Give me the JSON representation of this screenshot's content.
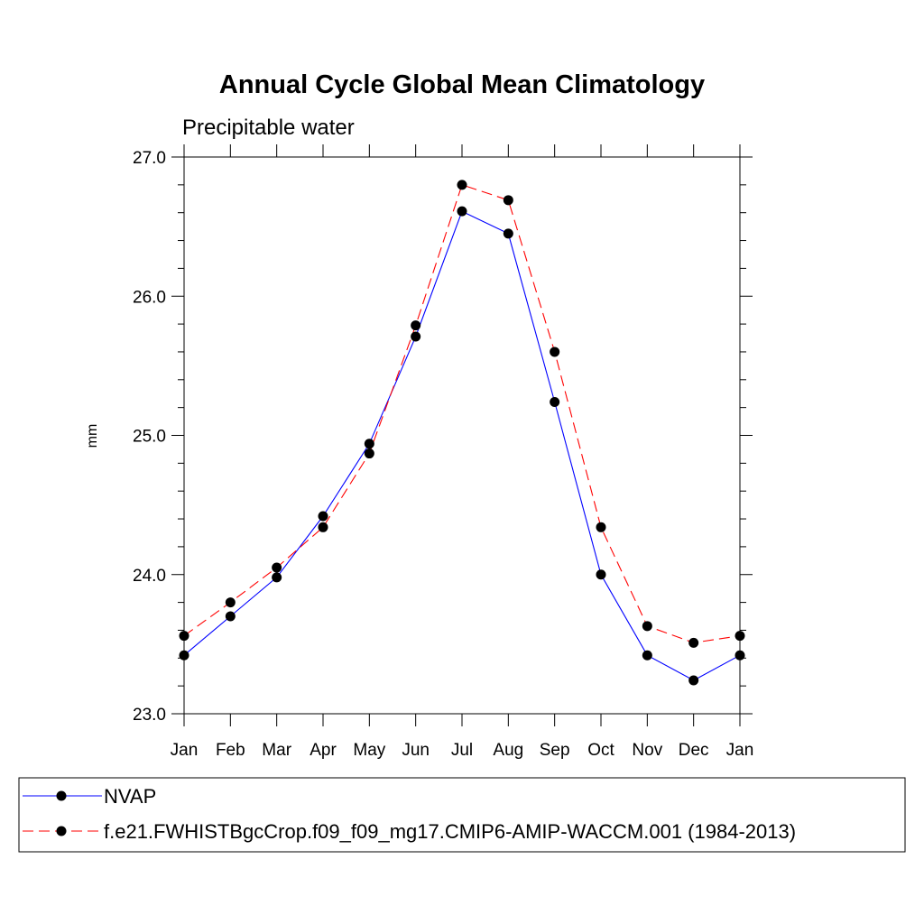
{
  "chart_data": {
    "type": "line",
    "title": "Annual Cycle Global Mean Climatology",
    "subtitle": "Precipitable water",
    "xlabel": "",
    "ylabel": "mm",
    "categories": [
      "Jan",
      "Feb",
      "Mar",
      "Apr",
      "May",
      "Jun",
      "Jul",
      "Aug",
      "Sep",
      "Oct",
      "Nov",
      "Dec",
      "Jan"
    ],
    "ylim": [
      23.0,
      27.0
    ],
    "yticks": [
      "23.0",
      "24.0",
      "25.0",
      "26.0",
      "27.0"
    ],
    "grid": false,
    "legend_position": "bottom",
    "series": [
      {
        "name": "NVAP",
        "color": "#0000ff",
        "style": "solid",
        "marker": "filled-circle",
        "values": [
          23.42,
          23.7,
          23.98,
          24.42,
          24.94,
          25.71,
          26.61,
          26.45,
          25.24,
          24.0,
          23.42,
          23.24,
          23.42
        ]
      },
      {
        "name": "f.e21.FWHISTBgcCrop.f09_f09_mg17.CMIP6-AMIP-WACCM.001 (1984-2013)",
        "color": "#ff0000",
        "style": "dashed",
        "marker": "filled-circle",
        "values": [
          23.56,
          23.8,
          24.05,
          24.34,
          24.87,
          25.79,
          26.8,
          26.69,
          25.6,
          24.34,
          23.63,
          23.51,
          23.56
        ]
      }
    ]
  }
}
